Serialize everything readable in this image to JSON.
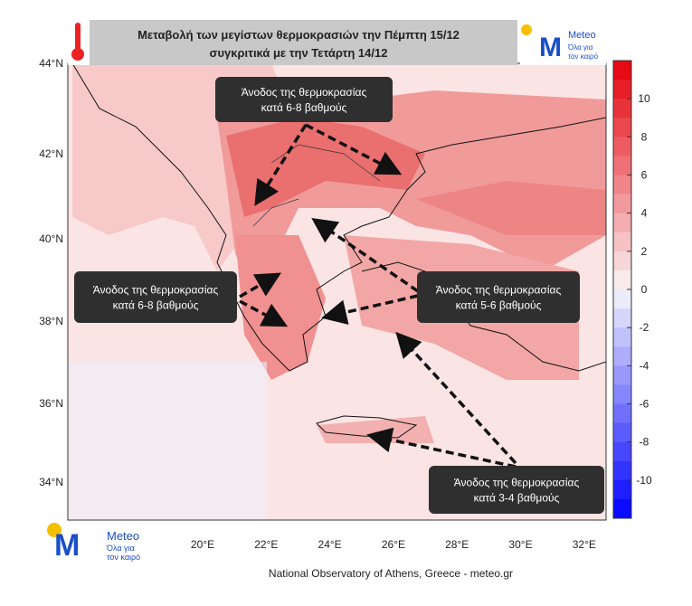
{
  "header": {
    "title_lines": [
      "Μεταβολή των μεγίστων θερμοκρασιών την Πέμπτη 15/12",
      "συγκριτικά με την Τετάρτη 14/12"
    ]
  },
  "logo": {
    "name": "Meteo",
    "tagline_lines": [
      "Όλα για",
      "τον καιρό"
    ]
  },
  "map": {
    "lat_labels": [
      "44°N",
      "42°N",
      "40°N",
      "38°N",
      "36°N",
      "34°N"
    ],
    "lon_labels": [
      "20°E",
      "22°E",
      "24°E",
      "26°E",
      "28°E",
      "30°E",
      "32°E"
    ],
    "annotations": [
      {
        "lines": [
          "Άνοδος της θερμοκρασίας",
          "κατά 6-8 βαθμούς"
        ]
      },
      {
        "lines": [
          "Άνοδος της θερμοκρασίας",
          "κατά 6-8 βαθμούς"
        ]
      },
      {
        "lines": [
          "Άνοδος της θερμοκρασίας",
          "κατά 5-6 βαθμούς"
        ]
      },
      {
        "lines": [
          "Άνοδος της θερμοκρασίας",
          "κατά 3-4 βαθμούς"
        ]
      }
    ]
  },
  "colorbar": {
    "ticks": [
      10,
      8,
      6,
      4,
      2,
      0,
      -2,
      -4,
      -6,
      -8,
      -10
    ]
  },
  "footer": "National Observatory of Athens, Greece - meteo.gr"
}
